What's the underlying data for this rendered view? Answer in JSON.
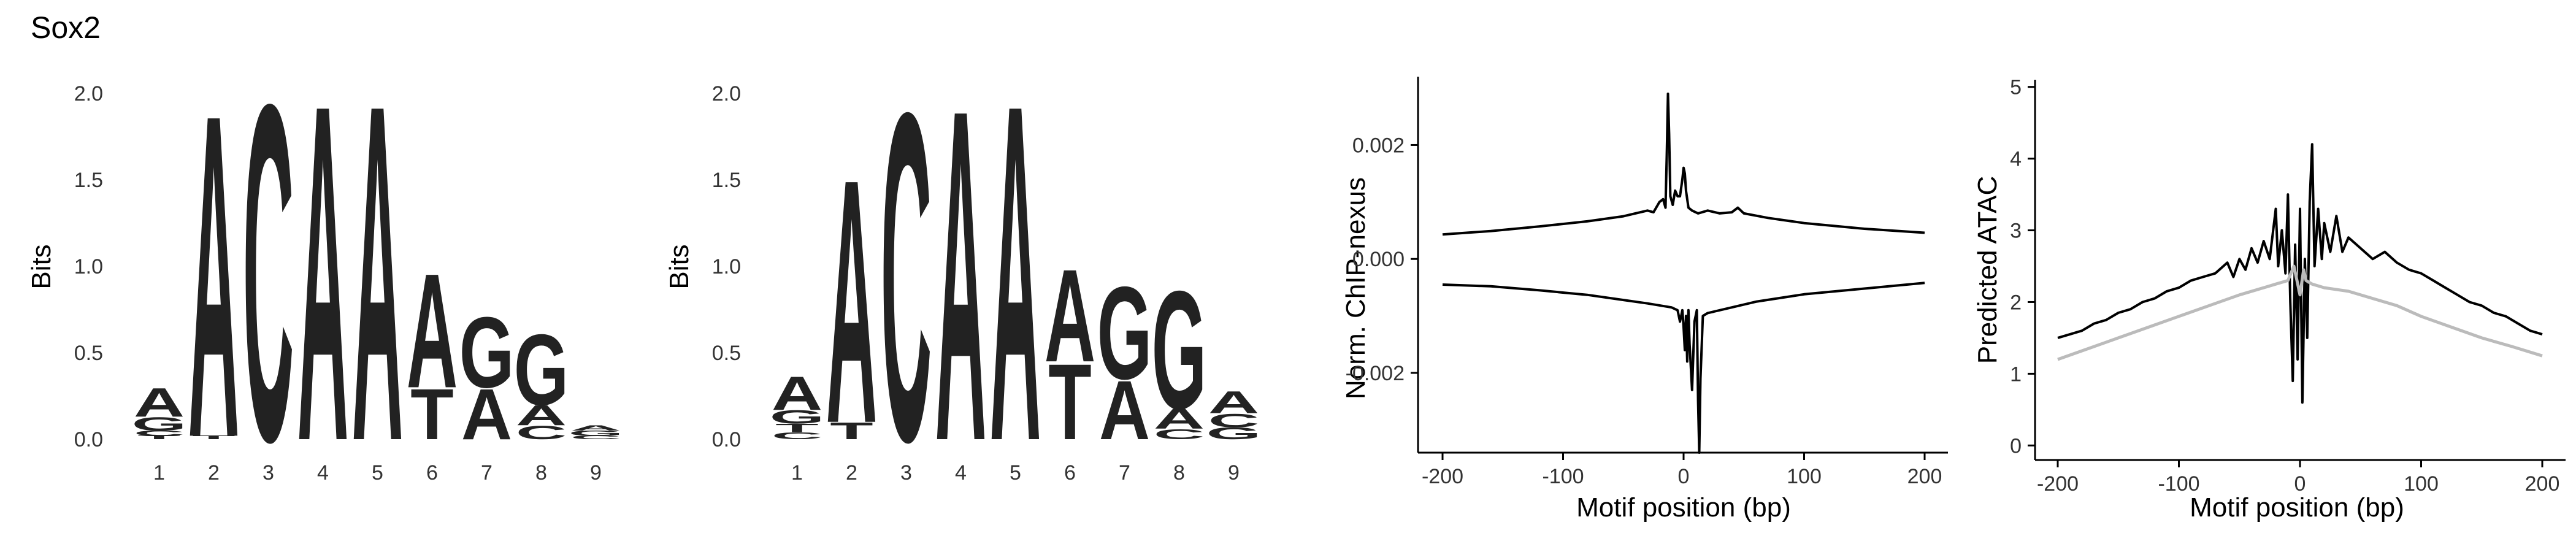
{
  "figure_title": "Sox2",
  "colors": {
    "A": "#109648",
    "C": "#255C99",
    "G": "#F7B32B",
    "T": "#D62839",
    "signal": "#000000",
    "secondary": "#BBBBBB"
  },
  "chart_data": [
    {
      "type": "sequence-logo",
      "ylabel": "Bits",
      "ylim": [
        0,
        2
      ],
      "yticks": [
        "0.0",
        "0.5",
        "1.0",
        "1.5",
        "2.0"
      ],
      "positions": [
        "1",
        "2",
        "3",
        "4",
        "5",
        "6",
        "7",
        "8",
        "9"
      ],
      "stacks": [
        [
          {
            "base": "T",
            "bits": 0.02
          },
          {
            "base": "C",
            "bits": 0.03
          },
          {
            "base": "G",
            "bits": 0.08
          },
          {
            "base": "A",
            "bits": 0.17
          }
        ],
        [
          {
            "base": "T",
            "bits": 0.02
          },
          {
            "base": "A",
            "bits": 1.92
          }
        ],
        [
          {
            "base": "C",
            "bits": 2.0
          }
        ],
        [
          {
            "base": "A",
            "bits": 2.0
          }
        ],
        [
          {
            "base": "A",
            "bits": 2.0
          }
        ],
        [
          {
            "base": "T",
            "bits": 0.3
          },
          {
            "base": "A",
            "bits": 0.68
          }
        ],
        [
          {
            "base": "A",
            "bits": 0.3
          },
          {
            "base": "G",
            "bits": 0.42
          }
        ],
        [
          {
            "base": "C",
            "bits": 0.08
          },
          {
            "base": "A",
            "bits": 0.12
          },
          {
            "base": "G",
            "bits": 0.42
          }
        ],
        [
          {
            "base": "C",
            "bits": 0.02
          },
          {
            "base": "G",
            "bits": 0.03
          },
          {
            "base": "A",
            "bits": 0.03
          }
        ]
      ]
    },
    {
      "type": "sequence-logo",
      "ylabel": "Bits",
      "ylim": [
        0,
        2
      ],
      "yticks": [
        "0.0",
        "0.5",
        "1.0",
        "1.5",
        "2.0"
      ],
      "positions": [
        "1",
        "2",
        "3",
        "4",
        "5",
        "6",
        "7",
        "8",
        "9"
      ],
      "stacks": [
        [
          {
            "base": "C",
            "bits": 0.04
          },
          {
            "base": "T",
            "bits": 0.05
          },
          {
            "base": "G",
            "bits": 0.08
          },
          {
            "base": "A",
            "bits": 0.2
          }
        ],
        [
          {
            "base": "T",
            "bits": 0.1
          },
          {
            "base": "A",
            "bits": 1.45
          }
        ],
        [
          {
            "base": "C",
            "bits": 1.95
          }
        ],
        [
          {
            "base": "A",
            "bits": 1.97
          }
        ],
        [
          {
            "base": "A",
            "bits": 2.0
          }
        ],
        [
          {
            "base": "T",
            "bits": 0.45
          },
          {
            "base": "A",
            "bits": 0.55
          }
        ],
        [
          {
            "base": "A",
            "bits": 0.35
          },
          {
            "base": "G",
            "bits": 0.55
          }
        ],
        [
          {
            "base": "C",
            "bits": 0.06
          },
          {
            "base": "A",
            "bits": 0.12
          },
          {
            "base": "G",
            "bits": 0.7
          }
        ],
        [
          {
            "base": "G",
            "bits": 0.07
          },
          {
            "base": "C",
            "bits": 0.08
          },
          {
            "base": "A",
            "bits": 0.13
          }
        ]
      ]
    },
    {
      "type": "line",
      "xlabel": "Motif position (bp)",
      "ylabel": "Norm. ChIP-nexus",
      "xlim": [
        -200,
        200
      ],
      "ylim": [
        -0.0034,
        0.0032
      ],
      "xticks": [
        -200,
        -100,
        0,
        100,
        200
      ],
      "xtick_labels": [
        "-200",
        "-100",
        "0",
        "100",
        "200"
      ],
      "yticks": [
        -0.002,
        0,
        0.002
      ],
      "ytick_labels": [
        "-0.002",
        "0.000",
        "0.002"
      ],
      "series": [
        {
          "values": [
            [
              -200,
              0.00043
            ],
            [
              -160,
              0.00049
            ],
            [
              -120,
              0.00057
            ],
            [
              -80,
              0.00066
            ],
            [
              -50,
              0.00075
            ],
            [
              -30,
              0.00085
            ],
            [
              -25,
              0.00082
            ],
            [
              -20,
              0.001
            ],
            [
              -17,
              0.00105
            ],
            [
              -15,
              0.0009
            ],
            [
              -14,
              0.0018
            ],
            [
              -13,
              0.0029
            ],
            [
              -12,
              0.0022
            ],
            [
              -11,
              0.0011
            ],
            [
              -9,
              0.00095
            ],
            [
              -7,
              0.0012
            ],
            [
              -5,
              0.0011
            ],
            [
              -3,
              0.0011
            ],
            [
              -1,
              0.0014
            ],
            [
              0,
              0.0016
            ],
            [
              1,
              0.0015
            ],
            [
              2,
              0.0012
            ],
            [
              4,
              0.0009
            ],
            [
              7,
              0.00085
            ],
            [
              12,
              0.0008
            ],
            [
              20,
              0.00085
            ],
            [
              30,
              0.0008
            ],
            [
              40,
              0.00082
            ],
            [
              45,
              0.0009
            ],
            [
              50,
              0.0008
            ],
            [
              70,
              0.00072
            ],
            [
              100,
              0.00063
            ],
            [
              150,
              0.00053
            ],
            [
              200,
              0.00046
            ]
          ]
        },
        {
          "values": [
            [
              -200,
              -0.00045
            ],
            [
              -160,
              -0.00048
            ],
            [
              -120,
              -0.00055
            ],
            [
              -80,
              -0.00063
            ],
            [
              -50,
              -0.00072
            ],
            [
              -30,
              -0.00078
            ],
            [
              -10,
              -0.00085
            ],
            [
              -5,
              -0.0009
            ],
            [
              -3,
              -0.0011
            ],
            [
              -1,
              -0.0009
            ],
            [
              0,
              -0.0012
            ],
            [
              1,
              -0.0016
            ],
            [
              2,
              -0.001
            ],
            [
              3,
              -0.0018
            ],
            [
              4,
              -0.0009
            ],
            [
              5,
              -0.0015
            ],
            [
              7,
              -0.0023
            ],
            [
              9,
              -0.0011
            ],
            [
              11,
              -0.0009
            ],
            [
              12,
              -0.0025
            ],
            [
              13,
              -0.0034
            ],
            [
              14,
              -0.0021
            ],
            [
              16,
              -0.001
            ],
            [
              20,
              -0.00095
            ],
            [
              30,
              -0.0009
            ],
            [
              40,
              -0.00085
            ],
            [
              60,
              -0.00075
            ],
            [
              100,
              -0.00062
            ],
            [
              150,
              -0.00052
            ],
            [
              200,
              -0.00042
            ]
          ]
        }
      ]
    },
    {
      "type": "line",
      "xlabel": "Motif position (bp)",
      "ylabel": "Predicted ATAC",
      "xlim": [
        -200,
        200
      ],
      "ylim": [
        -0.1,
        5.1
      ],
      "xticks": [
        -200,
        -100,
        0,
        100,
        200
      ],
      "xtick_labels": [
        "-200",
        "-100",
        "0",
        "100",
        "200"
      ],
      "yticks": [
        0,
        1,
        2,
        3,
        4,
        5
      ],
      "ytick_labels": [
        "0",
        "1",
        "2",
        "3",
        "4",
        "5"
      ],
      "series": [
        {
          "values": [
            [
              -200,
              1.5
            ],
            [
              -190,
              1.55
            ],
            [
              -180,
              1.6
            ],
            [
              -170,
              1.7
            ],
            [
              -160,
              1.75
            ],
            [
              -150,
              1.85
            ],
            [
              -140,
              1.9
            ],
            [
              -130,
              2.0
            ],
            [
              -120,
              2.05
            ],
            [
              -110,
              2.15
            ],
            [
              -100,
              2.2
            ],
            [
              -90,
              2.3
            ],
            [
              -80,
              2.35
            ],
            [
              -70,
              2.4
            ],
            [
              -60,
              2.55
            ],
            [
              -55,
              2.35
            ],
            [
              -50,
              2.6
            ],
            [
              -45,
              2.45
            ],
            [
              -40,
              2.75
            ],
            [
              -35,
              2.55
            ],
            [
              -30,
              2.85
            ],
            [
              -25,
              2.6
            ],
            [
              -20,
              3.3
            ],
            [
              -18,
              2.5
            ],
            [
              -15,
              3.0
            ],
            [
              -12,
              2.4
            ],
            [
              -10,
              3.5
            ],
            [
              -8,
              2.0
            ],
            [
              -6,
              0.9
            ],
            [
              -4,
              2.8
            ],
            [
              -2,
              1.2
            ],
            [
              0,
              3.3
            ],
            [
              2,
              0.6
            ],
            [
              4,
              2.6
            ],
            [
              6,
              1.5
            ],
            [
              8,
              3.4
            ],
            [
              10,
              4.2
            ],
            [
              12,
              2.5
            ],
            [
              15,
              3.3
            ],
            [
              18,
              2.6
            ],
            [
              20,
              3.1
            ],
            [
              25,
              2.7
            ],
            [
              30,
              3.2
            ],
            [
              35,
              2.7
            ],
            [
              40,
              2.9
            ],
            [
              50,
              2.75
            ],
            [
              60,
              2.6
            ],
            [
              70,
              2.7
            ],
            [
              80,
              2.55
            ],
            [
              90,
              2.45
            ],
            [
              100,
              2.4
            ],
            [
              110,
              2.3
            ],
            [
              120,
              2.2
            ],
            [
              130,
              2.1
            ],
            [
              140,
              2.0
            ],
            [
              150,
              1.95
            ],
            [
              160,
              1.85
            ],
            [
              170,
              1.8
            ],
            [
              180,
              1.7
            ],
            [
              190,
              1.6
            ],
            [
              200,
              1.55
            ]
          ]
        },
        {
          "values": [
            [
              -200,
              1.2
            ],
            [
              -175,
              1.35
            ],
            [
              -150,
              1.5
            ],
            [
              -125,
              1.65
            ],
            [
              -100,
              1.8
            ],
            [
              -75,
              1.95
            ],
            [
              -50,
              2.1
            ],
            [
              -30,
              2.2
            ],
            [
              -20,
              2.25
            ],
            [
              -10,
              2.3
            ],
            [
              -5,
              2.5
            ],
            [
              0,
              2.1
            ],
            [
              3,
              2.45
            ],
            [
              5,
              2.3
            ],
            [
              10,
              2.25
            ],
            [
              20,
              2.2
            ],
            [
              40,
              2.15
            ],
            [
              60,
              2.05
            ],
            [
              80,
              1.95
            ],
            [
              100,
              1.8
            ],
            [
              125,
              1.65
            ],
            [
              150,
              1.5
            ],
            [
              175,
              1.38
            ],
            [
              200,
              1.25
            ]
          ]
        }
      ]
    }
  ]
}
